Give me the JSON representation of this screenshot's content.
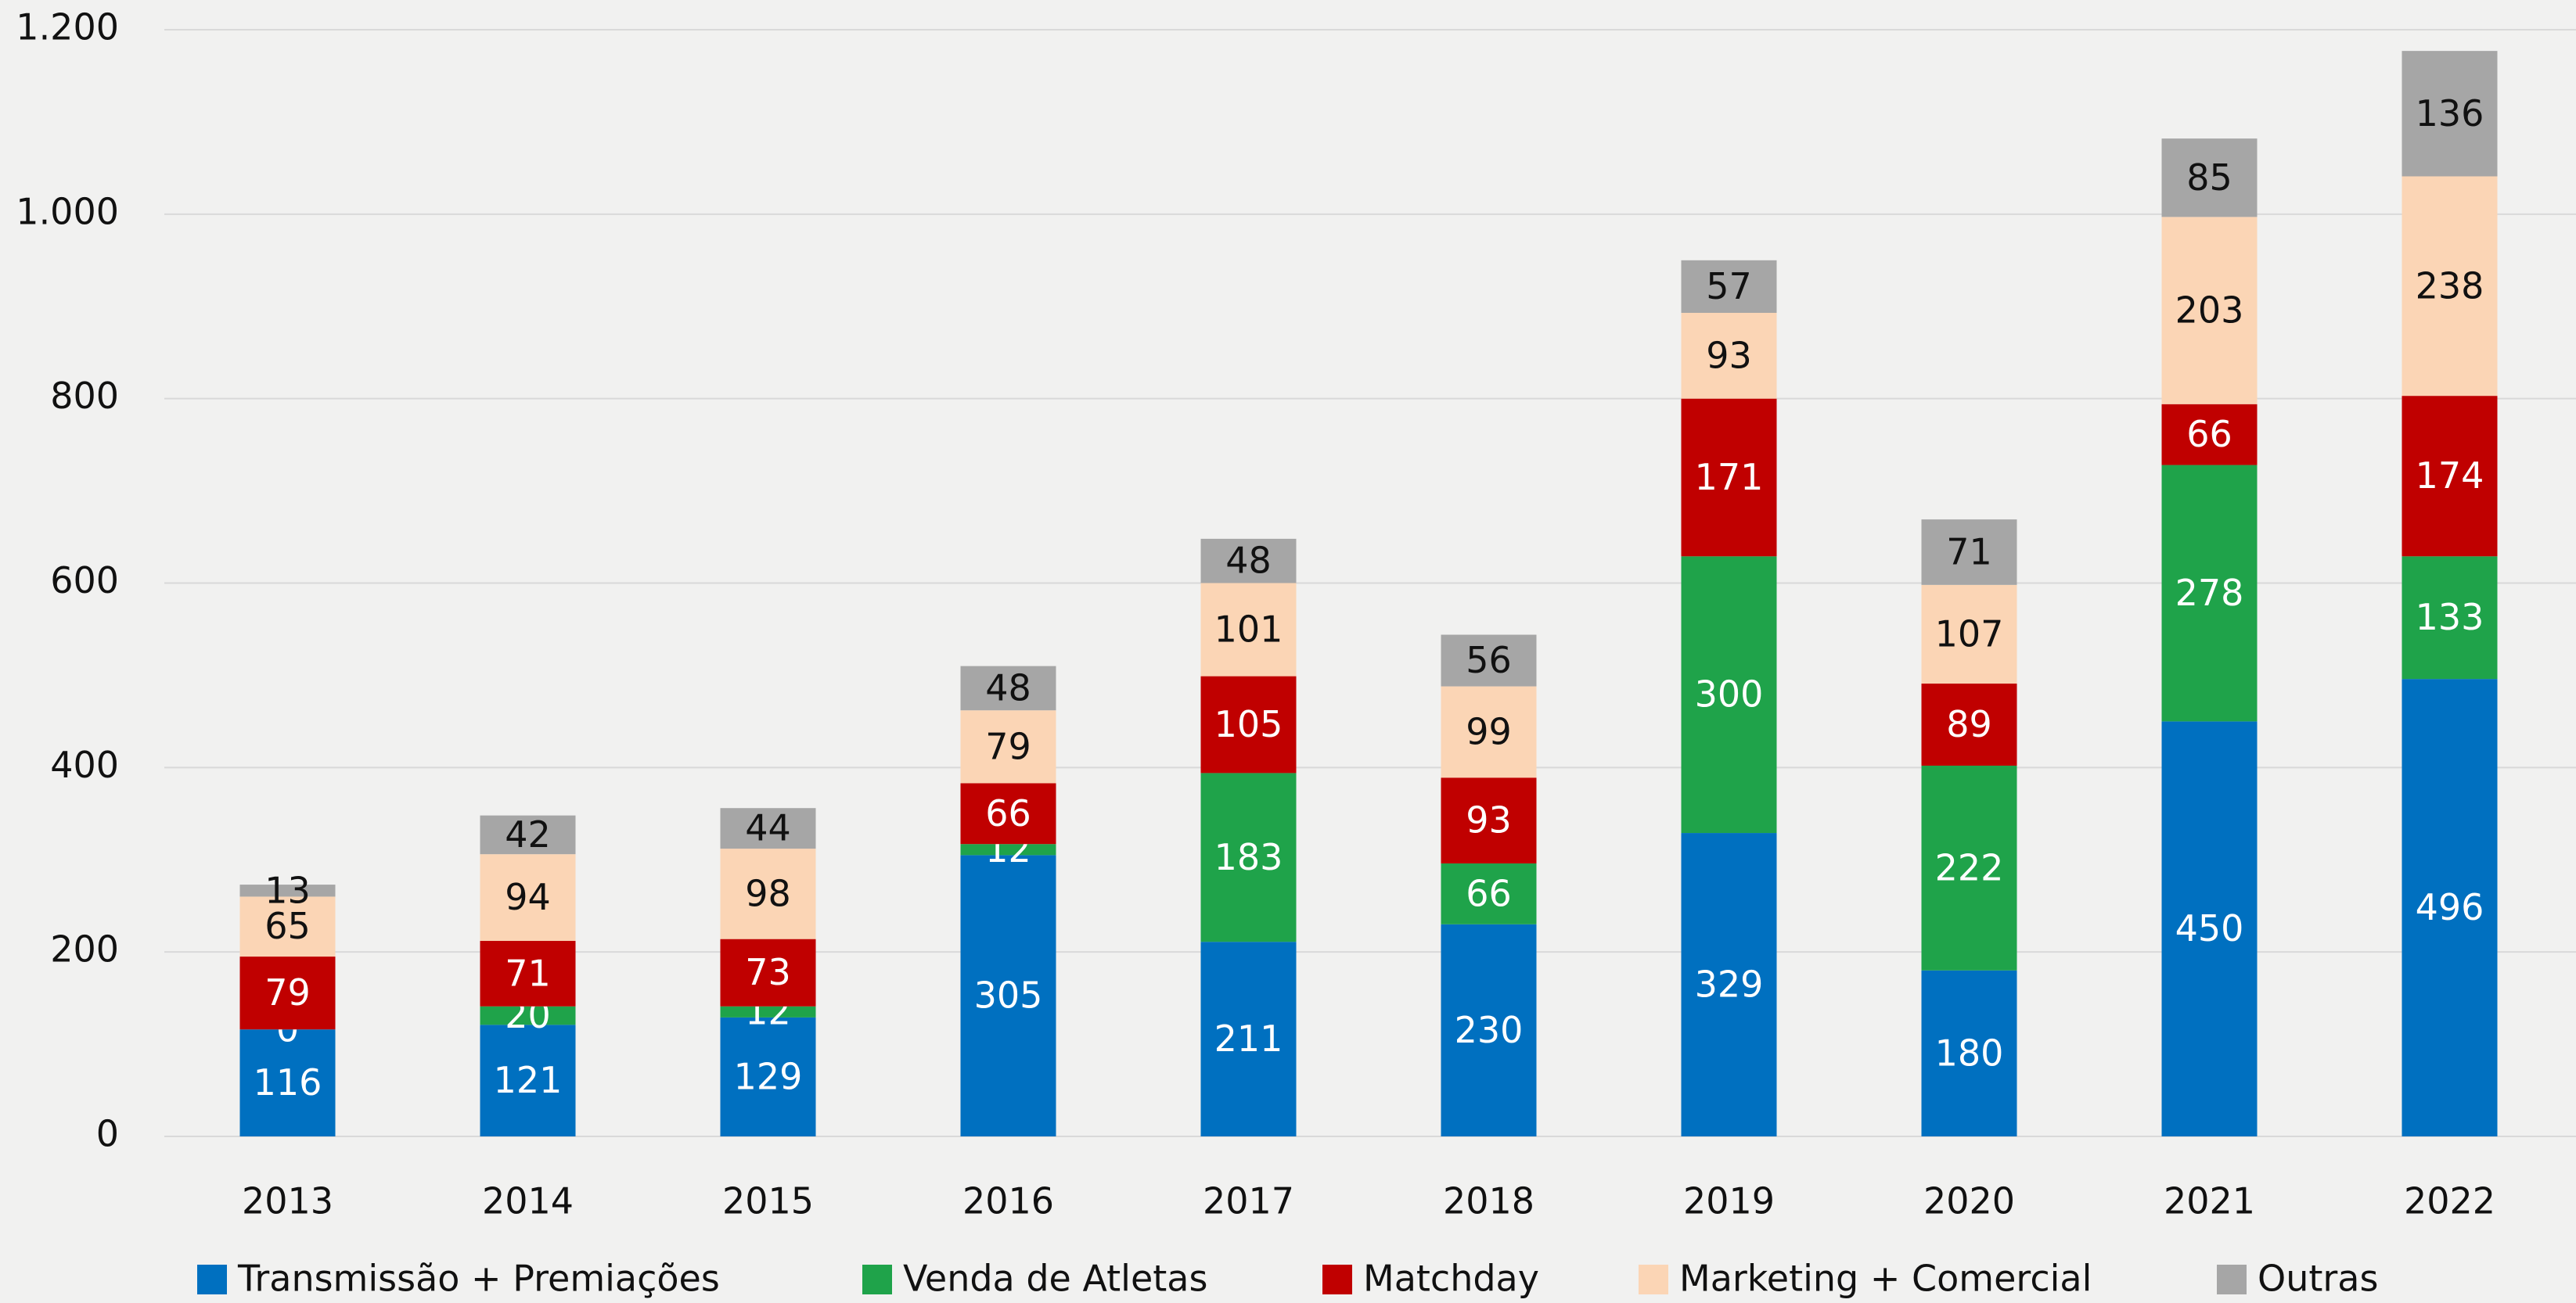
{
  "chart_data": {
    "type": "bar",
    "stacked": true,
    "categories": [
      "2013",
      "2014",
      "2015",
      "2016",
      "2017",
      "2018",
      "2019",
      "2020",
      "2021",
      "2022"
    ],
    "series": [
      {
        "name": "Transmissão + Premiações",
        "color": "#0070c0",
        "label_color": "#ffffff",
        "values": [
          116,
          121,
          129,
          305,
          211,
          230,
          329,
          180,
          450,
          496
        ]
      },
      {
        "name": "Venda de Atletas",
        "color": "#1fa34a",
        "label_color": "#ffffff",
        "values": [
          0,
          20,
          12,
          12,
          183,
          66,
          300,
          222,
          278,
          133
        ]
      },
      {
        "name": "Matchday",
        "color": "#c00000",
        "label_color": "#ffffff",
        "values": [
          79,
          71,
          73,
          66,
          105,
          93,
          171,
          89,
          66,
          174
        ]
      },
      {
        "name": "Marketing + Comercial",
        "color": "#fbd5b5",
        "label_color": "#111111",
        "values": [
          65,
          94,
          98,
          79,
          101,
          99,
          93,
          107,
          203,
          238
        ]
      },
      {
        "name": "Outras",
        "color": "#a6a6a6",
        "label_color": "#111111",
        "values": [
          13,
          42,
          44,
          48,
          48,
          56,
          57,
          71,
          85,
          136
        ]
      }
    ],
    "ylim": [
      0,
      1200
    ],
    "yticks": [
      0,
      200,
      400,
      600,
      800,
      {
        "value": 1000,
        "label": "1.000"
      },
      {
        "value": 1200,
        "label": "1.200"
      }
    ],
    "grid": true,
    "legend": "bottom"
  }
}
